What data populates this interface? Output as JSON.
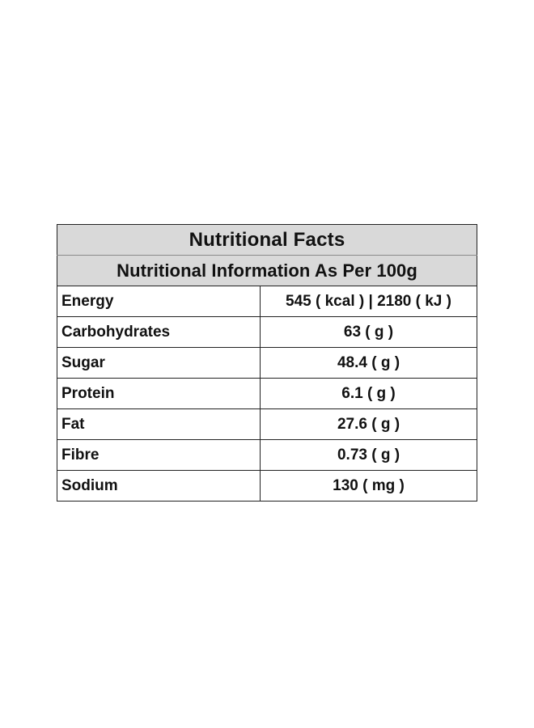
{
  "table": {
    "title": "Nutritional Facts",
    "subtitle": "Nutritional Information As Per 100g",
    "rows": [
      {
        "name": "Energy",
        "value": "545 ( kcal ) | 2180 ( kJ )"
      },
      {
        "name": "Carbohydrates",
        "value": "63 ( g )"
      },
      {
        "name": "Sugar",
        "value": "48.4 ( g )"
      },
      {
        "name": "Protein",
        "value": "6.1 ( g )"
      },
      {
        "name": "Fat",
        "value": "27.6 ( g )"
      },
      {
        "name": "Fibre",
        "value": "0.73 ( g )"
      },
      {
        "name": "Sodium",
        "value": "130 ( mg )"
      }
    ]
  }
}
